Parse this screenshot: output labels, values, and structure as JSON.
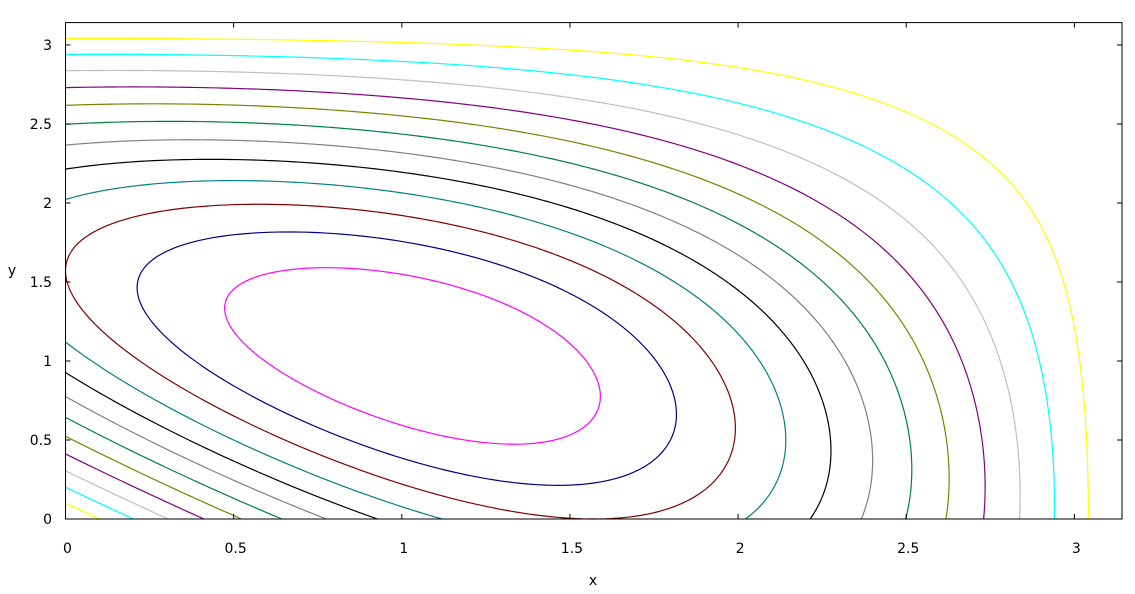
{
  "chart_data": {
    "type": "contour",
    "title": "",
    "xlabel": "x",
    "ylabel": "y",
    "xlim": [
      0,
      3.14159
    ],
    "ylim": [
      0,
      3.14159
    ],
    "x_ticks": [
      "0",
      "0.5",
      "1",
      "1.5",
      "2",
      "2.5",
      "3"
    ],
    "x_tick_values": [
      0,
      0.5,
      1,
      1.5,
      2,
      2.5,
      3
    ],
    "y_ticks": [
      "0",
      "0.5",
      "1",
      "1.5",
      "2",
      "2.5",
      "3"
    ],
    "y_tick_values": [
      0,
      0.5,
      1,
      1.5,
      2,
      2.5,
      3
    ],
    "grid": false,
    "legend": "none",
    "contours": [
      {
        "level": 2.4,
        "color": "#ff00ff"
      },
      {
        "level": 2.2,
        "color": "#000080"
      },
      {
        "level": 2.0,
        "color": "#800000"
      },
      {
        "level": 1.8,
        "color": "#008080"
      },
      {
        "level": 1.6,
        "color": "#000000"
      },
      {
        "level": 1.4,
        "color": "#808080"
      },
      {
        "level": 1.2,
        "color": "#008040"
      },
      {
        "level": 1.0,
        "color": "#808000"
      },
      {
        "level": 0.8,
        "color": "#800080"
      },
      {
        "level": 0.6,
        "color": "#c0c0c0"
      },
      {
        "level": 0.4,
        "color": "#00ffff"
      },
      {
        "level": 0.2,
        "color": "#ffff00"
      }
    ]
  }
}
